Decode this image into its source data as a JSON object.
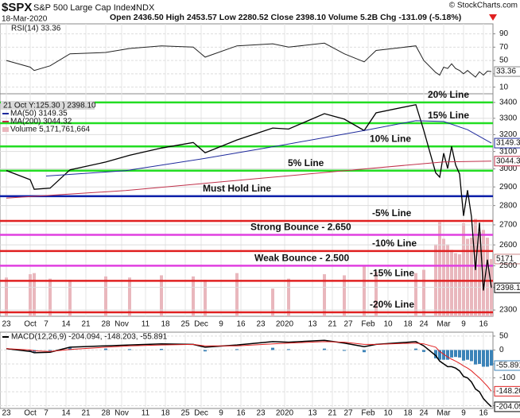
{
  "header": {
    "symbol": "$SPX",
    "title": "S&P 500 Large Cap Index",
    "exchange": "INDX",
    "date": "18-Mar-2020",
    "quote": "Open 2436.50  High 2453.57  Low 2280.52  Close 2398.10  Volume 5.2B  Chg -131.09 (-5.18%)",
    "copyright": "© StockCharts.com"
  },
  "chart_data": [
    {
      "type": "line",
      "title": "RSI(14) 33.36",
      "ylim": [
        0,
        105
      ],
      "yticks": [
        90,
        70,
        50,
        30,
        10
      ],
      "color": "#222222",
      "last_label": "33.36",
      "x": [
        0,
        6,
        7,
        11,
        16,
        25,
        31,
        39,
        47,
        50,
        58,
        67,
        71,
        80,
        85,
        90,
        93,
        103,
        105,
        108,
        109,
        110,
        111,
        112,
        113,
        114,
        115,
        116,
        117,
        118,
        119,
        120,
        121,
        122
      ],
      "values": [
        50,
        40,
        35,
        42,
        60,
        62,
        68,
        72,
        70,
        55,
        72,
        75,
        70,
        76,
        60,
        48,
        65,
        72,
        50,
        32,
        28,
        40,
        38,
        45,
        38,
        35,
        30,
        35,
        30,
        25,
        33,
        28,
        34,
        33.36
      ]
    },
    {
      "type": "line",
      "log_scale": true,
      "grid": true,
      "ylim": [
        2273,
        3456
      ],
      "yticks": [
        3400,
        3300,
        3200,
        3100,
        3000,
        2900,
        2800,
        2700,
        2600,
        2500,
        2400,
        2300
      ],
      "xlim": [
        -1.6,
        122.4
      ],
      "xticks": [
        {
          "value": 0,
          "label": "23"
        },
        {
          "value": 6,
          "label": "Oct"
        },
        {
          "value": 10,
          "label": "7"
        },
        {
          "value": 15,
          "label": "14"
        },
        {
          "value": 20,
          "label": "21"
        },
        {
          "value": 25,
          "label": "28"
        },
        {
          "value": 29,
          "label": "Nov"
        },
        {
          "value": 35,
          "label": "11"
        },
        {
          "value": 40,
          "label": "18"
        },
        {
          "value": 45,
          "label": "25"
        },
        {
          "value": 49,
          "label": "Dec"
        },
        {
          "value": 54,
          "label": "9"
        },
        {
          "value": 59,
          "label": "16"
        },
        {
          "value": 64,
          "label": "23"
        },
        {
          "value": 70,
          "label": "2020"
        },
        {
          "value": 77,
          "label": "13"
        },
        {
          "value": 82,
          "label": "21"
        },
        {
          "value": 86,
          "label": "27"
        },
        {
          "value": 91,
          "label": "Feb"
        },
        {
          "value": 96,
          "label": "10"
        },
        {
          "value": 101,
          "label": "18"
        },
        {
          "value": 105,
          "label": "24"
        },
        {
          "value": 110,
          "label": "Mar"
        },
        {
          "value": 115,
          "label": "9"
        },
        {
          "value": 120,
          "label": "16"
        }
      ],
      "annotation": "21 Oct Y:125.30 ) 2398.10",
      "x": [
        0,
        6,
        7,
        11,
        16,
        25,
        31,
        39,
        47,
        50,
        58,
        67,
        71,
        80,
        85,
        90,
        93,
        103,
        105,
        108,
        109,
        110,
        111,
        112,
        113,
        114,
        115,
        116,
        117,
        118,
        119,
        120,
        121,
        122
      ],
      "series": [
        {
          "color": "#000000",
          "last_label": "2398.10",
          "values": [
            2991,
            2940,
            2887,
            2893,
            2995,
            3039,
            3078,
            3120,
            3153,
            3093,
            3168,
            3240,
            3234,
            3329,
            3295,
            3225,
            3334,
            3386,
            3225,
            2978,
            2954,
            3090,
            3003,
            3130,
            3023,
            2972,
            2746,
            2882,
            2741,
            2480,
            2711,
            2386,
            2529,
            2398.1
          ]
        },
        {
          "name": "MA(50) 3149.35",
          "color": "#1e2a9c",
          "last_label": "3149.35",
          "x": [
            10,
            30,
            50,
            70,
            90,
            103,
            110,
            116,
            122
          ],
          "values": [
            2960,
            2990,
            3060,
            3140,
            3225,
            3285,
            3280,
            3230,
            3149.35
          ]
        },
        {
          "name": "MA(200) 3044.32",
          "color": "#c0304a",
          "last_label": "3044.32",
          "x": [
            0,
            30,
            60,
            90,
            110,
            122
          ],
          "values": [
            2840,
            2880,
            2940,
            3000,
            3040,
            3044.32
          ]
        }
      ],
      "levels": [
        {
          "label": "20% Line",
          "value": 3400,
          "color": "#22dd22"
        },
        {
          "label": "15% Line",
          "value": 3270,
          "color": "#22dd22"
        },
        {
          "label": "10% Line",
          "value": 3130,
          "color": "#22dd22"
        },
        {
          "label": "5% Line",
          "value": 2990,
          "color": "#22dd22"
        },
        {
          "label": "Must Hold Line",
          "value": 2850,
          "color": "#0a1ea8"
        },
        {
          "label": "-5% Line",
          "value": 2720,
          "color": "#e02020"
        },
        {
          "label": "Strong Bounce - 2.650",
          "value": 2650,
          "color": "#e040e0"
        },
        {
          "label": "-10% Line",
          "value": 2570,
          "color": "#e02020"
        },
        {
          "label": "Weak Bounce - 2.500",
          "value": 2500,
          "color": "#e040e0"
        },
        {
          "label": "-15% Line",
          "value": 2430,
          "color": "#e02020"
        },
        {
          "label": "-20% Line",
          "value": 2290,
          "color": "#e02020"
        }
      ]
    },
    {
      "type": "bar",
      "name": "Volume 5,171,761,664",
      "color": "#e9b7bd",
      "ylim": [
        0,
        20100
      ],
      "last_label": "5171",
      "x": [
        0,
        6,
        7,
        11,
        16,
        25,
        31,
        39,
        47,
        50,
        58,
        67,
        71,
        80,
        85,
        90,
        93,
        103,
        105,
        108,
        109,
        110,
        111,
        112,
        113,
        114,
        115,
        116,
        117,
        118,
        119,
        120,
        121,
        122
      ],
      "values": [
        3500,
        3800,
        3900,
        3400,
        3300,
        3600,
        3500,
        3700,
        3600,
        3300,
        3900,
        2500,
        3400,
        3800,
        3700,
        4500,
        4000,
        3900,
        4200,
        6500,
        8500,
        7000,
        6500,
        6000,
        5700,
        5600,
        8400,
        7000,
        7100,
        8800,
        7600,
        7800,
        7100,
        5171.76
      ]
    },
    {
      "type": "line",
      "title": "MACD(12,26,9) -204.094, -148.203, -55.891",
      "ylim": [
        -210,
        64
      ],
      "yticks": [
        50,
        0,
        -50,
        -100,
        -150,
        -200
      ],
      "x": [
        0,
        6,
        7,
        11,
        16,
        25,
        31,
        39,
        47,
        50,
        58,
        67,
        71,
        80,
        85,
        90,
        93,
        103,
        105,
        108,
        109,
        110,
        111,
        112,
        113,
        114,
        115,
        116,
        117,
        118,
        119,
        120,
        121,
        122
      ],
      "series": [
        {
          "color": "#000000",
          "last_label": "-204.094",
          "values": [
            5,
            -5,
            -10,
            -8,
            10,
            15,
            18,
            22,
            20,
            10,
            18,
            30,
            28,
            35,
            25,
            12,
            20,
            30,
            15,
            -20,
            -40,
            -50,
            -60,
            -60,
            -65,
            -75,
            -95,
            -100,
            -115,
            -140,
            -150,
            -175,
            -190,
            -204.094
          ]
        },
        {
          "color": "#e02020",
          "last_label": "-148.203",
          "values": [
            5,
            0,
            -3,
            -5,
            2,
            10,
            15,
            18,
            20,
            15,
            15,
            22,
            25,
            30,
            28,
            20,
            20,
            25,
            22,
            10,
            -5,
            -15,
            -25,
            -33,
            -40,
            -48,
            -57,
            -65,
            -75,
            -88,
            -100,
            -115,
            -130,
            -148.203
          ]
        }
      ],
      "histogram": {
        "color": "#3b83b8",
        "last_label": "-55.891",
        "values": [
          0,
          -5,
          -7,
          -3,
          8,
          5,
          3,
          4,
          0,
          -5,
          3,
          8,
          3,
          5,
          -3,
          -8,
          0,
          5,
          -7,
          -30,
          -35,
          -35,
          -35,
          -27,
          -25,
          -27,
          -38,
          -35,
          -40,
          -52,
          -50,
          -60,
          -60,
          -55.891
        ]
      }
    }
  ]
}
